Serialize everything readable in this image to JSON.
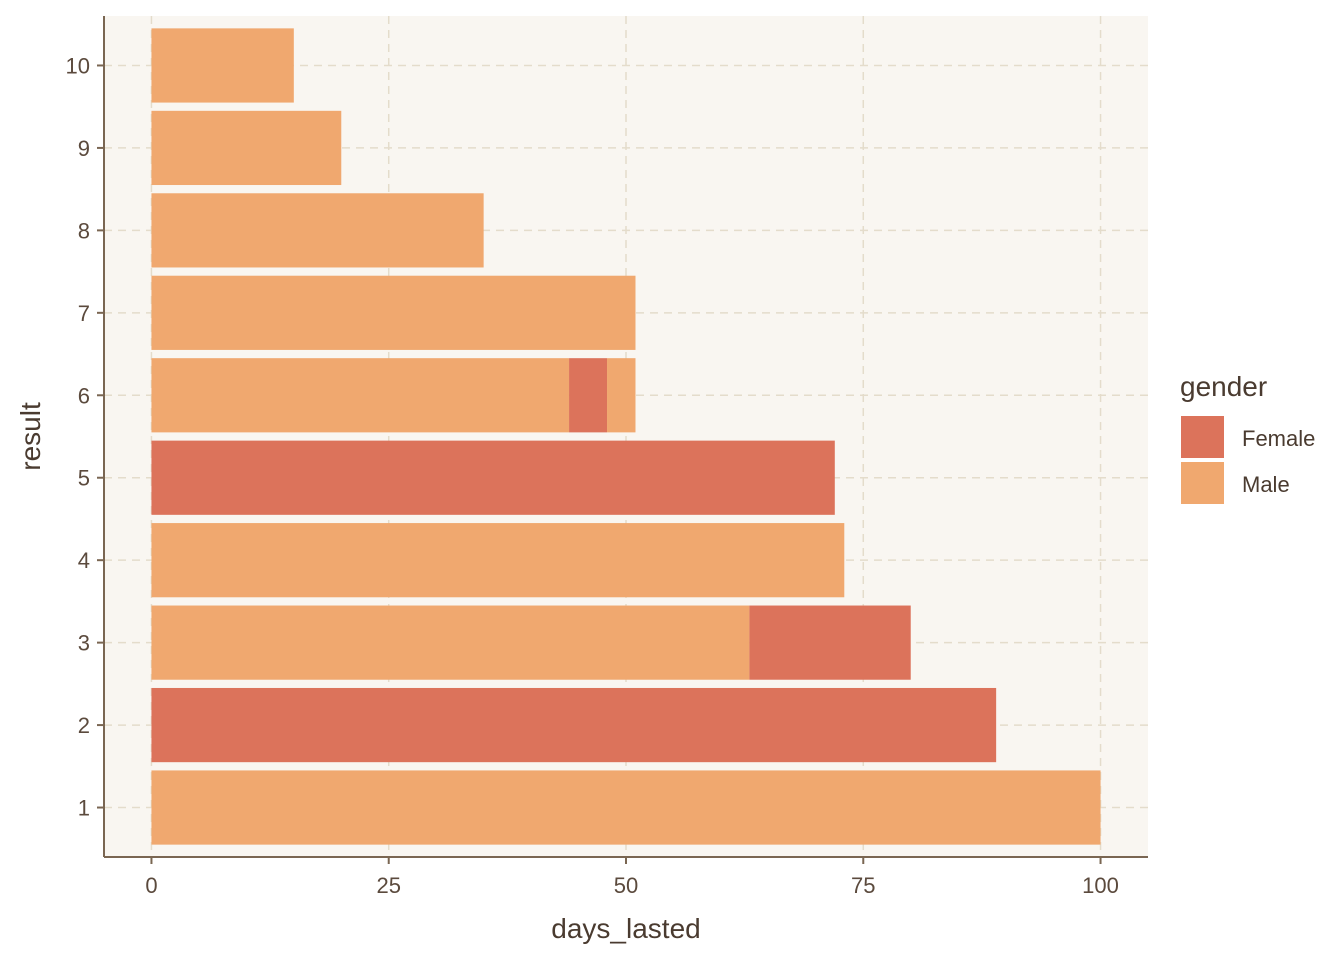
{
  "chart_data": {
    "type": "bar",
    "orientation": "horizontal",
    "stacked": true,
    "xlabel": "days_lasted",
    "ylabel": "result",
    "xlim": [
      -5,
      105
    ],
    "xticks": [
      0,
      25,
      50,
      75,
      100
    ],
    "categories": [
      "1",
      "2",
      "3",
      "4",
      "5",
      "6",
      "7",
      "8",
      "9",
      "10"
    ],
    "grid": true,
    "legend": {
      "title": "gender",
      "position": "right",
      "entries": [
        {
          "name": "Female",
          "color": "#dc735b"
        },
        {
          "name": "Male",
          "color": "#f0a86f"
        }
      ]
    },
    "colors": {
      "panel_background": "#f9f6f1",
      "grid": "#e4dccb",
      "axis": "#7a6652"
    },
    "bars": [
      {
        "category": "1",
        "segments": [
          {
            "gender": "Male",
            "value": 100
          }
        ]
      },
      {
        "category": "2",
        "segments": [
          {
            "gender": "Female",
            "value": 89
          }
        ]
      },
      {
        "category": "3",
        "segments": [
          {
            "gender": "Male",
            "value": 63
          },
          {
            "gender": "Female",
            "value": 17
          }
        ]
      },
      {
        "category": "4",
        "segments": [
          {
            "gender": "Male",
            "value": 73
          }
        ]
      },
      {
        "category": "5",
        "segments": [
          {
            "gender": "Female",
            "value": 72
          }
        ]
      },
      {
        "category": "6",
        "segments": [
          {
            "gender": "Male",
            "value": 44
          },
          {
            "gender": "Female",
            "value": 4
          },
          {
            "gender": "Male",
            "value": 3
          }
        ]
      },
      {
        "category": "7",
        "segments": [
          {
            "gender": "Male",
            "value": 51
          }
        ]
      },
      {
        "category": "8",
        "segments": [
          {
            "gender": "Male",
            "value": 35
          }
        ]
      },
      {
        "category": "9",
        "segments": [
          {
            "gender": "Male",
            "value": 20
          }
        ]
      },
      {
        "category": "10",
        "segments": [
          {
            "gender": "Male",
            "value": 15
          }
        ]
      }
    ]
  }
}
